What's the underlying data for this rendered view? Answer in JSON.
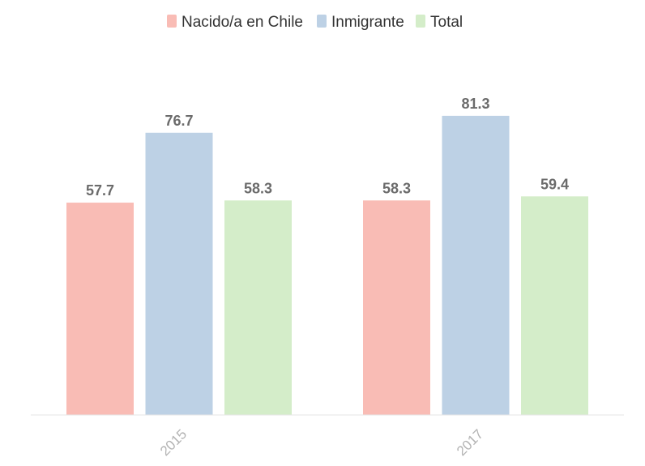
{
  "chart_data": {
    "type": "bar",
    "categories": [
      "2015",
      "2017"
    ],
    "series": [
      {
        "name": "Nacido/a en Chile",
        "color": "#f9bcb5",
        "values": [
          57.7,
          58.3
        ]
      },
      {
        "name": "Inmigrante",
        "color": "#bdd1e5",
        "values": [
          76.7,
          81.3
        ]
      },
      {
        "name": "Total",
        "color": "#d4edc9",
        "values": [
          58.3,
          59.4
        ]
      }
    ],
    "ylim": [
      0,
      100
    ],
    "legend_position": "top-center",
    "grid": false,
    "data_labels": true
  }
}
